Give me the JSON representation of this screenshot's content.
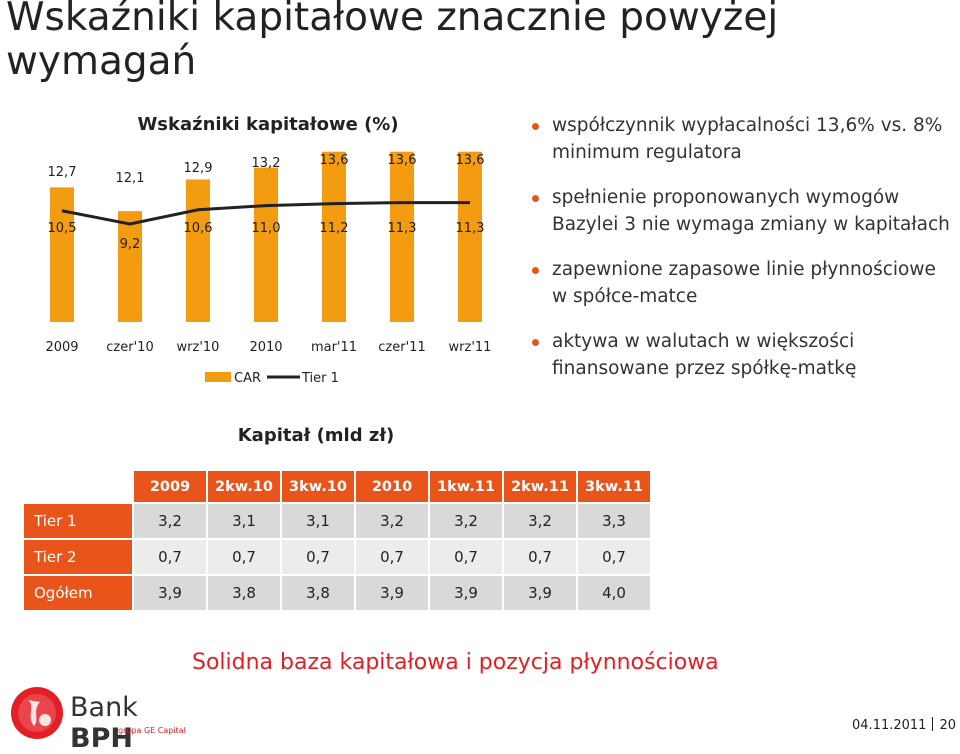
{
  "slide": {
    "title": "Wskaźniki kapitałowe znacznie powyżej wymagań",
    "tagline": "Solidna baza kapitałowa i pozycja płynnościowa",
    "footer_date": "04.11.2011",
    "page_number": "20"
  },
  "bullets": [
    "współczynnik wypłacalności 13,6% vs. 8% minimum regulatora",
    "spełnienie proponowanych wymogów Bazylei 3 nie wymaga zmiany w kapitałach",
    "zapewnione zapasowe linie płynnościowe w spółce-matce",
    "aktywa w walutach w większości finansowane przez spółkę-matkę"
  ],
  "logo": {
    "brand_light": "Bank ",
    "brand_bold": "BPH",
    "sub": "grupa GE Capital"
  },
  "chart_data": {
    "type": "bar",
    "title": "Wskaźniki kapitałowe (%)",
    "categories": [
      "2009",
      "czer'10",
      "wrz'10",
      "2010",
      "mar'11",
      "czer'11",
      "wrz'11"
    ],
    "series": [
      {
        "name": "CAR",
        "kind": "bar",
        "color": "#f39c12",
        "values": [
          12.7,
          12.1,
          12.9,
          13.2,
          13.6,
          13.6,
          13.6
        ],
        "labels": [
          "12,7",
          "12,1",
          "12,9",
          "13,2",
          "13,6",
          "13,6",
          "13,6"
        ]
      },
      {
        "name": "Tier 1",
        "kind": "line",
        "color": "#222222",
        "values": [
          10.5,
          9.2,
          10.6,
          11.0,
          11.2,
          11.3,
          11.3
        ],
        "labels": [
          "10,5",
          "9,2",
          "10,6",
          "11,0",
          "11,2",
          "11,3",
          "11,3"
        ]
      }
    ],
    "legend_position": "bottom"
  },
  "capital_table": {
    "title": "Kapitał (mld zł)",
    "columns": [
      "2009",
      "2kw.10",
      "3kw.10",
      "2010",
      "1kw.11",
      "2kw.11",
      "3kw.11"
    ],
    "rows": [
      {
        "label": "Tier 1",
        "values": [
          "3,2",
          "3,1",
          "3,1",
          "3,2",
          "3,2",
          "3,2",
          "3,3"
        ]
      },
      {
        "label": "Tier 2",
        "values": [
          "0,7",
          "0,7",
          "0,7",
          "0,7",
          "0,7",
          "0,7",
          "0,7"
        ]
      },
      {
        "label": "Ogółem",
        "values": [
          "3,9",
          "3,8",
          "3,8",
          "3,9",
          "3,9",
          "3,9",
          "4,0"
        ]
      }
    ]
  },
  "colors": {
    "accent": "#e8541a",
    "bar": "#f39c12",
    "tagline": "#e31e24"
  }
}
